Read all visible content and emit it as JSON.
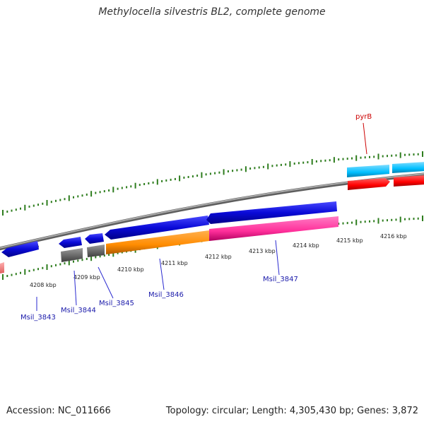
{
  "title": "Methylocella silvestris BL2, complete genome",
  "footer": {
    "accession": "Accession: NC_011666",
    "summary": "Topology: circular; Length: 4,305,430 bp; Genes: 3,872"
  },
  "kbp_labels": [
    "4208 kbp",
    "4209 kbp",
    "4210 kbp",
    "4211 kbp",
    "4212 kbp",
    "4213 kbp",
    "4214 kbp",
    "4215 kbp",
    "4216 kbp"
  ],
  "genes": {
    "Msil_3843": "Msil_3843",
    "Msil_3844": "Msil_3844",
    "Msil_3845": "Msil_3845",
    "Msil_3846": "Msil_3846",
    "Msil_3847": "Msil_3847",
    "pyrB": "pyrB"
  },
  "colors": {
    "backbone": "#808080",
    "tick": "#2e7d1e",
    "cds_blue": "#0a0ad8",
    "gene_grey": "#6b6b6b",
    "orange": "#ff8c00",
    "pink": "#ff2f9a",
    "cyan": "#00bfff",
    "red": "#ff0000",
    "salmon": "#f08080",
    "label_blue": "#1a1aaa",
    "label_red": "#cc0000"
  }
}
